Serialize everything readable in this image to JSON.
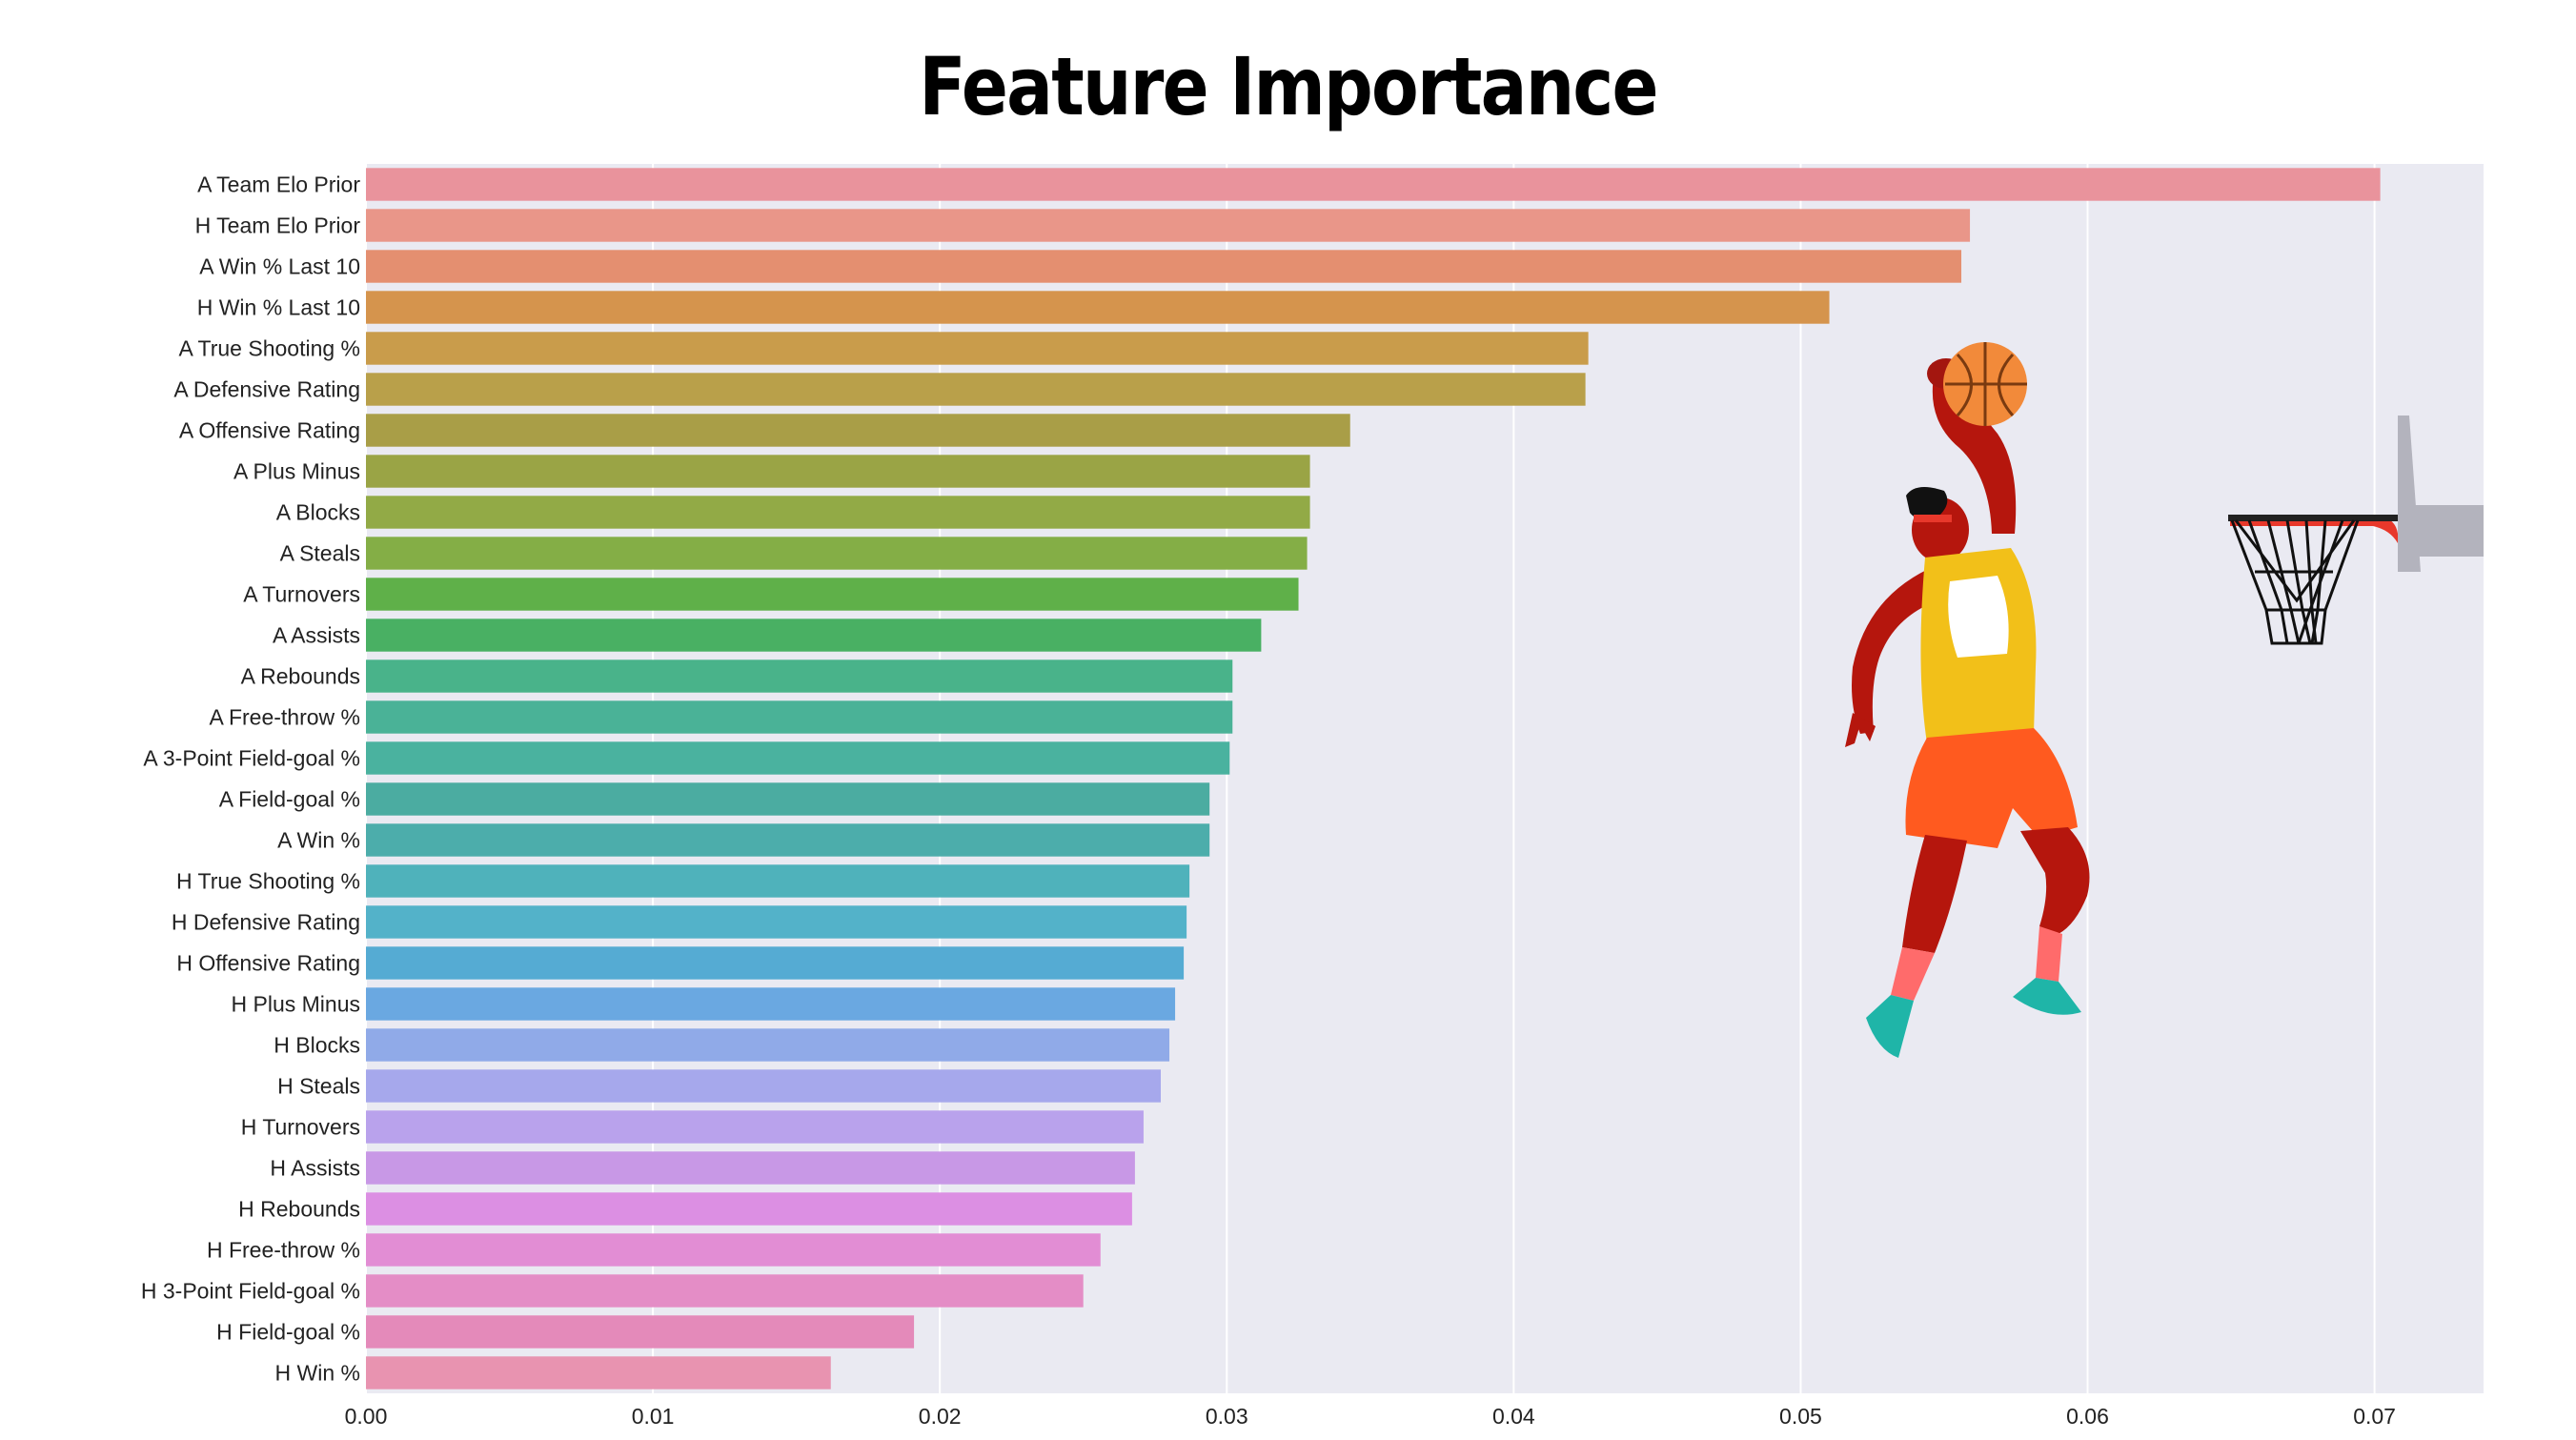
{
  "chart_data": {
    "type": "bar",
    "orientation": "horizontal",
    "title": "Feature Importance",
    "xlabel": "",
    "ylabel": "",
    "xlim": [
      0,
      0.0738
    ],
    "grid": true,
    "categories": [
      "A Team Elo Prior",
      "H Team Elo Prior",
      "A Win % Last 10",
      "H Win % Last 10",
      "A True Shooting %",
      "A Defensive Rating",
      "A Offensive Rating",
      "A Plus Minus",
      "A Blocks",
      "A Steals",
      "A Turnovers",
      "A Assists",
      "A Rebounds",
      "A Free-throw %",
      "A 3-Point Field-goal %",
      "A Field-goal %",
      "A Win %",
      "H True Shooting %",
      "H Defensive Rating",
      "H Offensive Rating",
      "H Plus Minus",
      "H Blocks",
      "H Steals",
      "H Turnovers",
      "H Assists",
      "H Rebounds",
      "H Free-throw %",
      "H 3-Point Field-goal %",
      "H Field-goal %",
      "H Win %"
    ],
    "values": [
      0.0702,
      0.0559,
      0.0556,
      0.051,
      0.0426,
      0.0425,
      0.0343,
      0.0329,
      0.0329,
      0.0328,
      0.0325,
      0.0312,
      0.0302,
      0.0302,
      0.0301,
      0.0294,
      0.0294,
      0.0287,
      0.0286,
      0.0285,
      0.0282,
      0.028,
      0.0277,
      0.0271,
      0.0268,
      0.0267,
      0.0256,
      0.025,
      0.0191,
      0.0162
    ],
    "colors": [
      "#e9939c",
      "#e99689",
      "#e48f70",
      "#d5944d",
      "#c99c4b",
      "#b9a04a",
      "#a99e47",
      "#9aa445",
      "#92aa46",
      "#84ae46",
      "#5fb049",
      "#49b063",
      "#49b38a",
      "#4ab297",
      "#4ab29f",
      "#4baca1",
      "#4cadab",
      "#4fb2bb",
      "#53b2c9",
      "#55abd3",
      "#6aa8e1",
      "#90aae8",
      "#a6a8ec",
      "#b9a2ec",
      "#c898e6",
      "#dc8fe3",
      "#e28dd4",
      "#e48dc6",
      "#e48aba",
      "#e893b0"
    ],
    "xticks": [
      0.0,
      0.01,
      0.02,
      0.03,
      0.04,
      0.05,
      0.06,
      0.07
    ],
    "xtick_labels": [
      "0.00",
      "0.01",
      "0.02",
      "0.03",
      "0.04",
      "0.05",
      "0.06",
      "0.07"
    ],
    "background": "#eaeaf2",
    "illustration": "basketball-player-dunk-icon"
  }
}
